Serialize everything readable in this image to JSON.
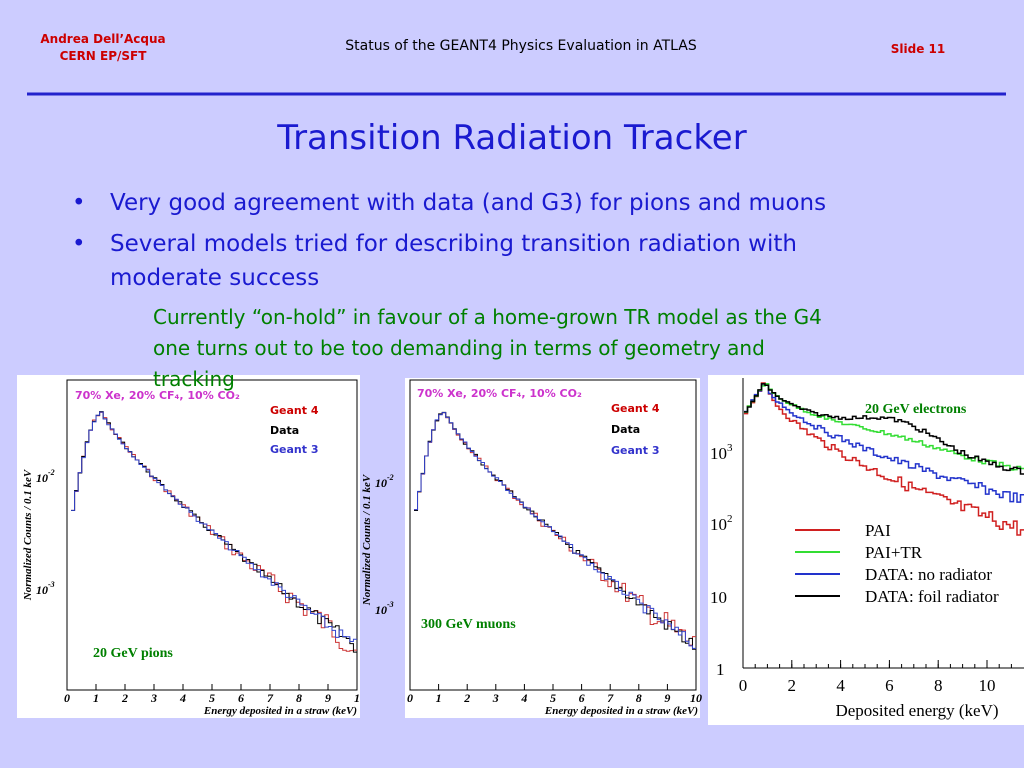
{
  "header": {
    "author": "Andrea Dell’Acqua",
    "affiliation": "CERN EP/SFT",
    "title": "Status of the GEANT4 Physics Evaluation in ATLAS",
    "slide": "Slide 11"
  },
  "title": "Transition Radiation Tracker",
  "bullets": [
    {
      "lines": [
        "Very good agreement with data (and G3) for pions and muons"
      ]
    },
    {
      "lines": [
        "Several models tried for describing transition radiation with",
        "moderate success"
      ]
    }
  ],
  "note": {
    "lines": [
      "Currently “on-hold” in favour of a home-grown TR model as the G4",
      "one turns out to be too demanding in terms of geometry and",
      "tracking"
    ]
  },
  "plots": [
    {
      "gas": "70% Xe, 20% CF₄, 10% CO₂",
      "legend": [
        "Geant 4",
        "Data",
        "Geant 3"
      ],
      "ylabel": "Normalized Counts / 0.1 keV",
      "yticks": [
        {
          "base": "10",
          "exp": "-2"
        },
        {
          "base": "10",
          "exp": "-3"
        }
      ],
      "xticks": [
        "0",
        "1",
        "2",
        "3",
        "4",
        "5",
        "6",
        "7",
        "8",
        "9",
        "1"
      ],
      "xlabel": "Energy deposited in a straw (keV)",
      "annotation": "20 GeV pions"
    },
    {
      "gas": "70% Xe, 20% CF₄, 10% CO₂",
      "legend": [
        "Geant 4",
        "Data",
        "Geant 3"
      ],
      "ylabel": "Normalized Counts / 0.1 keV",
      "yticks": [
        {
          "base": "10",
          "exp": "-2"
        },
        {
          "base": "10",
          "exp": "-3"
        }
      ],
      "xticks": [
        "0",
        "1",
        "2",
        "3",
        "4",
        "5",
        "6",
        "7",
        "8",
        "9",
        "10"
      ],
      "xlabel": "Energy deposited in a straw (keV)",
      "annotation": "300 GeV muons"
    },
    {
      "annotation": "20 GeV electrons",
      "legend": [
        "PAI",
        "PAI+TR",
        "DATA: no radiator",
        "DATA: foil radiator"
      ],
      "yticks": [
        {
          "base": "10",
          "exp": "3"
        },
        {
          "base": "10",
          "exp": "2"
        },
        {
          "base": "10",
          "exp": ""
        },
        {
          "base": "1",
          "exp": ""
        }
      ],
      "xticks": [
        "0",
        "2",
        "4",
        "6",
        "8",
        "10"
      ],
      "xlabel": "Deposited energy (keV)"
    }
  ]
}
